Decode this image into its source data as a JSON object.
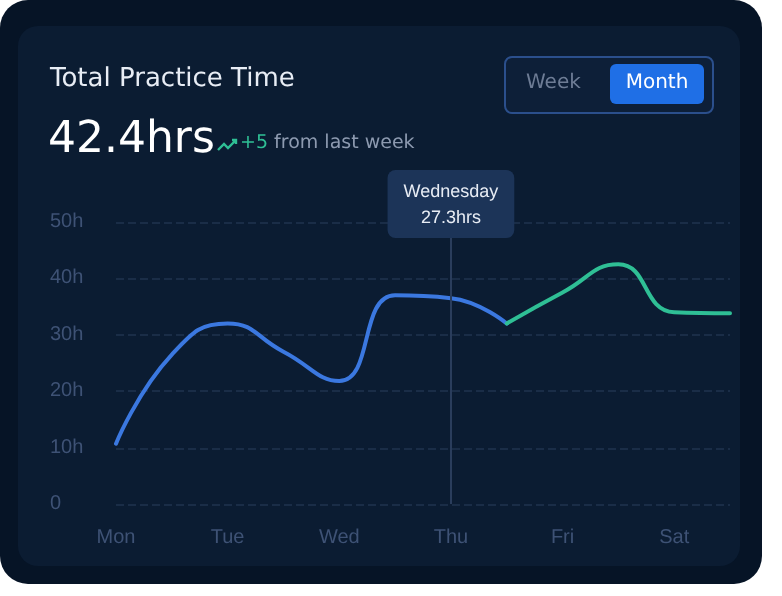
{
  "chart_data": {
    "type": "line",
    "title": "Total Practice Time",
    "subtitle": "42.4hrs",
    "annotations": [
      "+5 from last week",
      "Week",
      "Month"
    ],
    "categories": [
      "Mon",
      null,
      "Tue",
      null,
      "Wed",
      null,
      "Thu",
      null,
      "Fri",
      null,
      "Sat",
      null
    ],
    "ylim": [
      0,
      50
    ],
    "yticks": [
      {
        "value": 0,
        "label": "0"
      },
      {
        "value": 10,
        "label": "10h"
      },
      {
        "value": 20,
        "label": "20h"
      },
      {
        "value": 30,
        "label": "30h"
      },
      {
        "value": 40,
        "label": "40h"
      },
      {
        "value": 50,
        "label": "50h"
      }
    ],
    "series": [
      {
        "color": "#3b78e0",
        "values": [
          10.7,
          26.5,
          32,
          27,
          21.8,
          37,
          36.5,
          32,
          null,
          null,
          null,
          null
        ]
      },
      {
        "color": "#2fbf95",
        "values": [
          null,
          null,
          null,
          null,
          null,
          null,
          null,
          32,
          37.5,
          42.5,
          34,
          33.8
        ]
      }
    ],
    "ref_lines": [
      {
        "axis": "x",
        "value": "Thu",
        "label": "Wednesday\n27.3hrs",
        "color": "#2a3d5c"
      }
    ],
    "grid": "y",
    "marker": "none",
    "line_style": "solid"
  }
}
